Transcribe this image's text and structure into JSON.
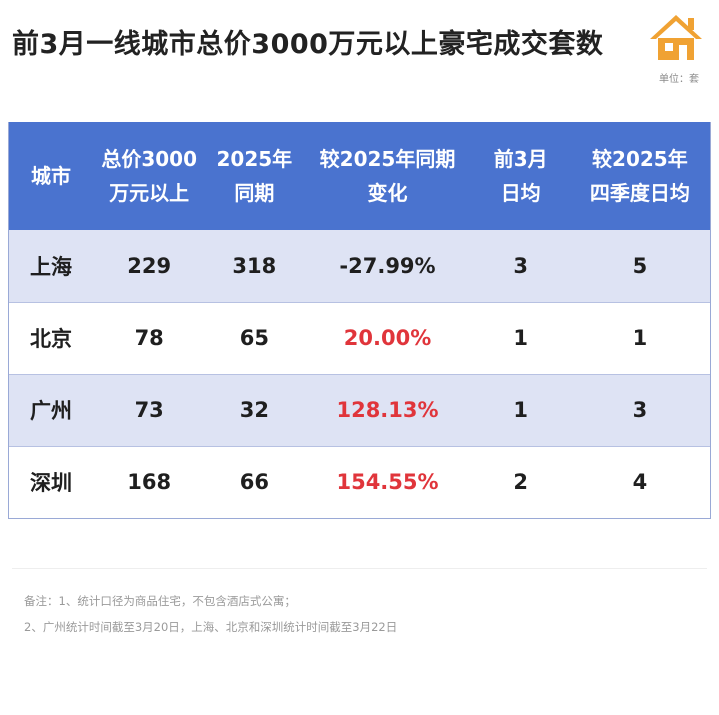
{
  "title": "前3月一线城市总价3000万元以上豪宅成交套数",
  "unit": "单位：套",
  "logo_icon": "house-logo-icon",
  "colors": {
    "header_bg": "#4a73cf",
    "stripe_bg": "#dee3f4",
    "positive_change": "#e0353b",
    "logo_orange": "#f0a233"
  },
  "table": {
    "headers": [
      [
        "城市"
      ],
      [
        "总价3000",
        "万元以上"
      ],
      [
        "2025年",
        "同期"
      ],
      [
        "较2025年同期",
        "变化"
      ],
      [
        "前3月",
        "日均"
      ],
      [
        "较2025年",
        "四季度日均"
      ]
    ],
    "rows": [
      {
        "city": "上海",
        "total": "229",
        "same_period": "318",
        "change": "-27.99%",
        "change_positive": false,
        "daily_avg": "3",
        "q4_daily_avg": "5"
      },
      {
        "city": "北京",
        "total": "78",
        "same_period": "65",
        "change": "20.00%",
        "change_positive": true,
        "daily_avg": "1",
        "q4_daily_avg": "1"
      },
      {
        "city": "广州",
        "total": "73",
        "same_period": "32",
        "change": "128.13%",
        "change_positive": true,
        "daily_avg": "1",
        "q4_daily_avg": "3"
      },
      {
        "city": "深圳",
        "total": "168",
        "same_period": "66",
        "change": "154.55%",
        "change_positive": true,
        "daily_avg": "2",
        "q4_daily_avg": "4"
      }
    ]
  },
  "notes": [
    "备注：1、统计口径为商品住宅，不包含酒店式公寓；",
    "2、广州统计时间截至3月20日，上海、北京和深圳统计时间截至3月22日"
  ],
  "chart_data": {
    "type": "table",
    "title": "前3月一线城市总价3000万元以上豪宅成交套数",
    "columns": [
      "城市",
      "总价3000万元以上",
      "2025年同期",
      "较2025年同期变化",
      "前3月日均",
      "较2025年四季度日均"
    ],
    "rows": [
      [
        "上海",
        229,
        318,
        "-27.99%",
        3,
        5
      ],
      [
        "北京",
        78,
        65,
        "20.00%",
        1,
        1
      ],
      [
        "广州",
        73,
        32,
        "128.13%",
        1,
        3
      ],
      [
        "深圳",
        168,
        66,
        "154.55%",
        2,
        4
      ]
    ]
  }
}
